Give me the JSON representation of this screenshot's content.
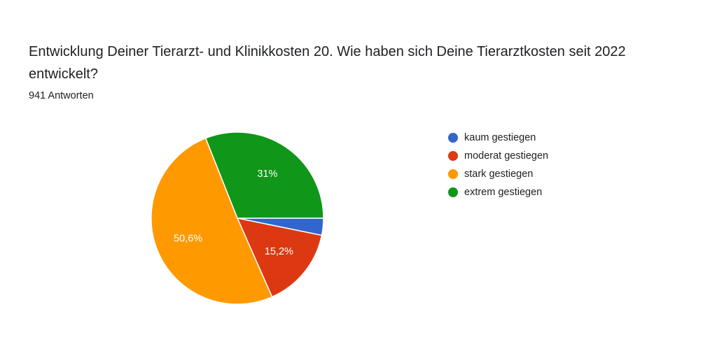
{
  "title": "Entwicklung Deiner Tierarzt- und Klinikkosten 20. Wie haben sich Deine Tierarztkosten seit 2022 entwickelt?",
  "subtitle": "941 Antworten",
  "chart_data": {
    "type": "pie",
    "title": "Entwicklung Deiner Tierarzt- und Klinikkosten 20. Wie haben sich Deine Tierarztkosten seit 2022 entwickelt?",
    "total_responses": 941,
    "legend_position": "right",
    "slices": [
      {
        "label": "kaum gestiegen",
        "value": 3.2,
        "color": "#3366cc",
        "data_label": ""
      },
      {
        "label": "moderat gestiegen",
        "value": 15.2,
        "color": "#dc3912",
        "data_label": "15,2%"
      },
      {
        "label": "stark gestiegen",
        "value": 50.6,
        "color": "#ff9900",
        "data_label": "50,6%"
      },
      {
        "label": "extrem gestiegen",
        "value": 31.0,
        "color": "#109618",
        "data_label": "31%"
      }
    ]
  }
}
